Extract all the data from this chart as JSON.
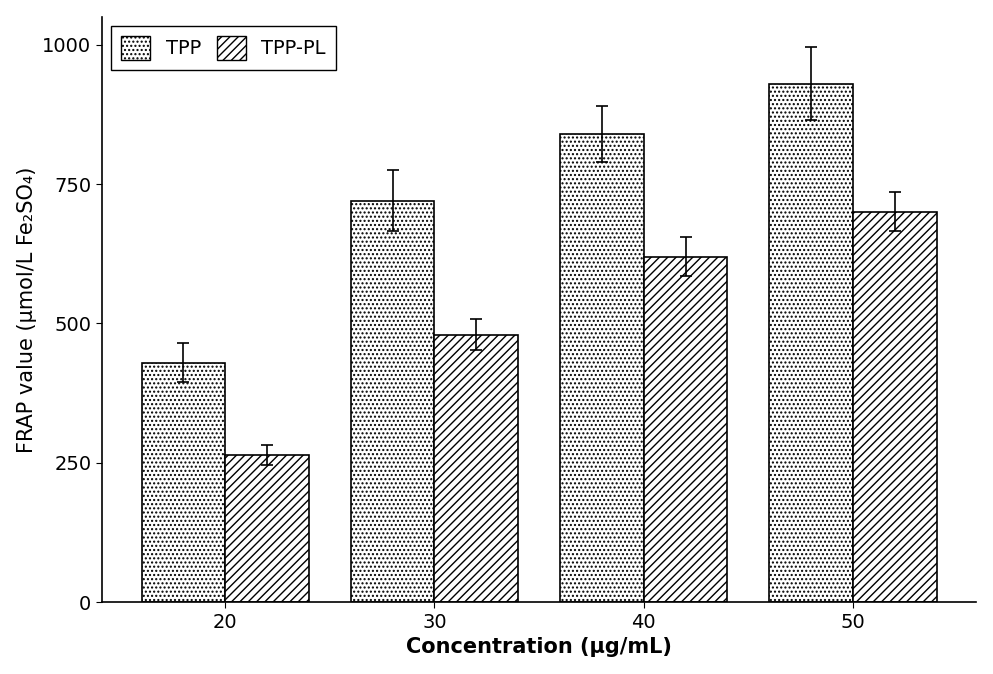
{
  "categories": [
    20,
    30,
    40,
    50
  ],
  "tpp_values": [
    430,
    720,
    840,
    930
  ],
  "tpl_values": [
    265,
    480,
    620,
    700
  ],
  "tpp_errors": [
    35,
    55,
    50,
    65
  ],
  "tpl_errors": [
    18,
    28,
    35,
    35
  ],
  "ylabel": "FRAP value (μmol/L Fe₂SO₄)",
  "xlabel": "Concentration (μg/mL)",
  "ylim": [
    0,
    1050
  ],
  "yticks": [
    0,
    250,
    500,
    750,
    1000
  ],
  "bar_width": 0.4,
  "legend_labels": [
    "TPP",
    "TPP-PL"
  ],
  "label_fontsize": 15,
  "tick_fontsize": 14,
  "legend_fontsize": 14,
  "background_color": "#ffffff"
}
